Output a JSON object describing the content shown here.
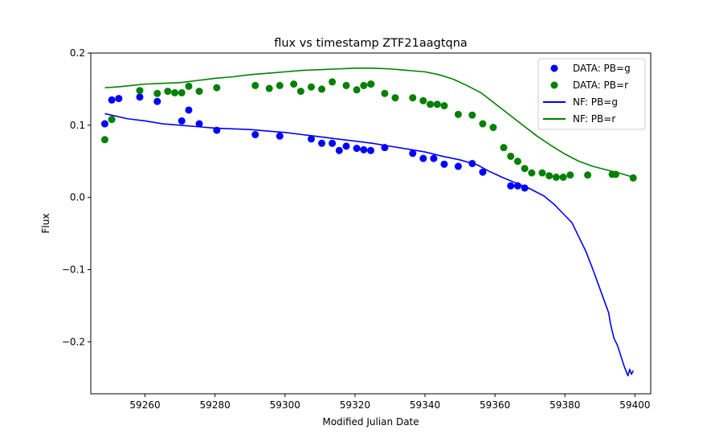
{
  "chart_data": {
    "type": "scatter",
    "title": "flux vs timestamp ZTF21aagtqna",
    "xlabel": "Modified Julian Date",
    "ylabel": "Flux",
    "xlim": [
      59244.5,
      59404.5
    ],
    "ylim": [
      -0.272,
      0.2
    ],
    "xticks": [
      59260,
      59280,
      59300,
      59320,
      59340,
      59360,
      59380,
      59400
    ],
    "xtick_labels": [
      "59260",
      "59280",
      "59300",
      "59320",
      "59340",
      "59360",
      "59380",
      "59400"
    ],
    "yticks": [
      0.2,
      0.1,
      0.0,
      -0.1,
      -0.2
    ],
    "ytick_labels": [
      "0.2",
      "0.1",
      "0.0",
      "−0.1",
      "−0.2"
    ],
    "grid": false,
    "legend_position": "top-right",
    "colors": {
      "g": "#0000ff",
      "r": "#008000"
    },
    "series": [
      {
        "name": "DATA: PB=g",
        "kind": "scatter",
        "color": "#0000ff",
        "points": [
          [
            59248.5,
            0.102
          ],
          [
            59250.5,
            0.135
          ],
          [
            59252.5,
            0.137
          ],
          [
            59258.5,
            0.139
          ],
          [
            59263.5,
            0.133
          ],
          [
            59270.5,
            0.106
          ],
          [
            59272.5,
            0.121
          ],
          [
            59275.5,
            0.102
          ],
          [
            59280.5,
            0.093
          ],
          [
            59291.5,
            0.087
          ],
          [
            59298.5,
            0.085
          ],
          [
            59307.5,
            0.081
          ],
          [
            59310.5,
            0.075
          ],
          [
            59313.5,
            0.075
          ],
          [
            59315.5,
            0.065
          ],
          [
            59317.5,
            0.071
          ],
          [
            59320.5,
            0.068
          ],
          [
            59322.5,
            0.066
          ],
          [
            59324.5,
            0.065
          ],
          [
            59328.5,
            0.069
          ],
          [
            59336.5,
            0.061
          ],
          [
            59339.5,
            0.054
          ],
          [
            59342.5,
            0.054
          ],
          [
            59345.5,
            0.046
          ],
          [
            59349.5,
            0.043
          ],
          [
            59353.5,
            0.047
          ],
          [
            59356.5,
            0.035
          ],
          [
            59364.5,
            0.016
          ],
          [
            59366.5,
            0.016
          ],
          [
            59368.5,
            0.013
          ]
        ]
      },
      {
        "name": "DATA: PB=r",
        "kind": "scatter",
        "color": "#008000",
        "points": [
          [
            59248.5,
            0.08
          ],
          [
            59250.5,
            0.108
          ],
          [
            59258.5,
            0.148
          ],
          [
            59263.5,
            0.144
          ],
          [
            59266.5,
            0.147
          ],
          [
            59268.5,
            0.145
          ],
          [
            59270.5,
            0.145
          ],
          [
            59272.5,
            0.154
          ],
          [
            59275.5,
            0.147
          ],
          [
            59280.5,
            0.152
          ],
          [
            59291.5,
            0.155
          ],
          [
            59295.5,
            0.151
          ],
          [
            59298.5,
            0.155
          ],
          [
            59302.5,
            0.157
          ],
          [
            59304.5,
            0.147
          ],
          [
            59307.5,
            0.153
          ],
          [
            59310.5,
            0.15
          ],
          [
            59313.5,
            0.16
          ],
          [
            59317.5,
            0.155
          ],
          [
            59320.5,
            0.149
          ],
          [
            59322.5,
            0.155
          ],
          [
            59324.5,
            0.157
          ],
          [
            59324.6,
            0.157
          ],
          [
            59328.5,
            0.144
          ],
          [
            59331.5,
            0.138
          ],
          [
            59336.5,
            0.138
          ],
          [
            59339.5,
            0.134
          ],
          [
            59341.5,
            0.129
          ],
          [
            59343.5,
            0.129
          ],
          [
            59345.5,
            0.127
          ],
          [
            59349.5,
            0.115
          ],
          [
            59353.5,
            0.114
          ],
          [
            59356.5,
            0.102
          ],
          [
            59359.5,
            0.097
          ],
          [
            59362.5,
            0.069
          ],
          [
            59364.5,
            0.057
          ],
          [
            59366.5,
            0.05
          ],
          [
            59368.5,
            0.04
          ],
          [
            59370.5,
            0.034
          ],
          [
            59373.5,
            0.034
          ],
          [
            59375.5,
            0.03
          ],
          [
            59377.5,
            0.028
          ],
          [
            59379.5,
            0.028
          ],
          [
            59381.5,
            0.031
          ],
          [
            59386.5,
            0.031
          ],
          [
            59393.5,
            0.032
          ],
          [
            59394.5,
            0.032
          ],
          [
            59399.5,
            0.027
          ]
        ]
      },
      {
        "name": "NF: PB=g",
        "kind": "line",
        "color": "#0000ff",
        "points": [
          [
            59248.5,
            0.116
          ],
          [
            59255,
            0.109
          ],
          [
            59260,
            0.106
          ],
          [
            59265,
            0.102
          ],
          [
            59270,
            0.1
          ],
          [
            59275,
            0.098
          ],
          [
            59280,
            0.096
          ],
          [
            59285,
            0.095
          ],
          [
            59290,
            0.094
          ],
          [
            59295,
            0.092
          ],
          [
            59300,
            0.09
          ],
          [
            59305,
            0.087
          ],
          [
            59310,
            0.084
          ],
          [
            59315,
            0.081
          ],
          [
            59320,
            0.078
          ],
          [
            59325,
            0.075
          ],
          [
            59330,
            0.071
          ],
          [
            59335,
            0.067
          ],
          [
            59340,
            0.063
          ],
          [
            59345,
            0.057
          ],
          [
            59350,
            0.052
          ],
          [
            59355,
            0.045
          ],
          [
            59358,
            0.037
          ],
          [
            59362,
            0.028
          ],
          [
            59366,
            0.02
          ],
          [
            59370,
            0.012
          ],
          [
            59374,
            0.002
          ],
          [
            59377,
            -0.01
          ],
          [
            59380,
            -0.025
          ],
          [
            59382,
            -0.035
          ],
          [
            59384,
            -0.055
          ],
          [
            59386,
            -0.075
          ],
          [
            59388,
            -0.1
          ],
          [
            59389.5,
            -0.12
          ],
          [
            59391,
            -0.14
          ],
          [
            59392.5,
            -0.16
          ],
          [
            59393,
            -0.175
          ],
          [
            59394,
            -0.195
          ],
          [
            59395,
            -0.205
          ],
          [
            59396,
            -0.22
          ],
          [
            59397,
            -0.235
          ],
          [
            59398,
            -0.247
          ],
          [
            59398.5,
            -0.238
          ],
          [
            59399,
            -0.245
          ],
          [
            59399.5,
            -0.24
          ]
        ]
      },
      {
        "name": "NF: PB=r",
        "kind": "line",
        "color": "#008000",
        "points": [
          [
            59248.5,
            0.152
          ],
          [
            59252,
            0.153
          ],
          [
            59256,
            0.155
          ],
          [
            59260,
            0.157
          ],
          [
            59265,
            0.158
          ],
          [
            59270,
            0.159
          ],
          [
            59275,
            0.162
          ],
          [
            59280,
            0.165
          ],
          [
            59285,
            0.167
          ],
          [
            59290,
            0.17
          ],
          [
            59295,
            0.172
          ],
          [
            59300,
            0.174
          ],
          [
            59305,
            0.176
          ],
          [
            59310,
            0.177
          ],
          [
            59315,
            0.178
          ],
          [
            59320,
            0.179
          ],
          [
            59325,
            0.179
          ],
          [
            59330,
            0.178
          ],
          [
            59335,
            0.176
          ],
          [
            59340,
            0.174
          ],
          [
            59344,
            0.17
          ],
          [
            59348,
            0.164
          ],
          [
            59352,
            0.155
          ],
          [
            59356,
            0.145
          ],
          [
            59360,
            0.13
          ],
          [
            59364,
            0.115
          ],
          [
            59368,
            0.1
          ],
          [
            59372,
            0.085
          ],
          [
            59376,
            0.072
          ],
          [
            59380,
            0.06
          ],
          [
            59384,
            0.05
          ],
          [
            59388,
            0.043
          ],
          [
            59392,
            0.038
          ],
          [
            59396,
            0.033
          ],
          [
            59399.5,
            0.028
          ]
        ]
      }
    ]
  }
}
